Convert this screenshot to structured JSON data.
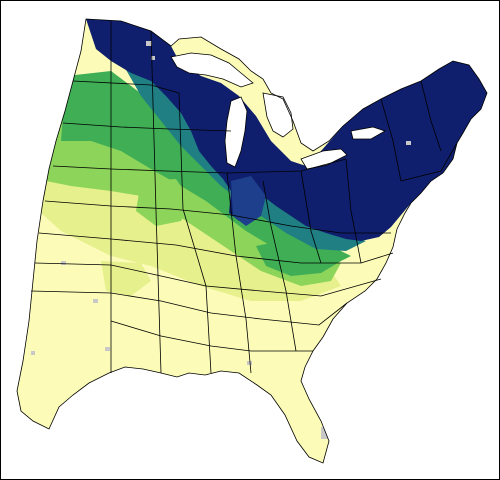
{
  "map": {
    "colors": {
      "background": "#ffffff",
      "low": "#fcfcb8",
      "low_mid": "#e6f08c",
      "mid": "#8cd45a",
      "mid_high": "#3fae55",
      "high_teal": "#1f7f83",
      "high_blue": "#1d3f8c",
      "highest": "#0f1f6e",
      "no_data": "#c8c8c8",
      "state_border": "#000000"
    },
    "legend": null
  }
}
